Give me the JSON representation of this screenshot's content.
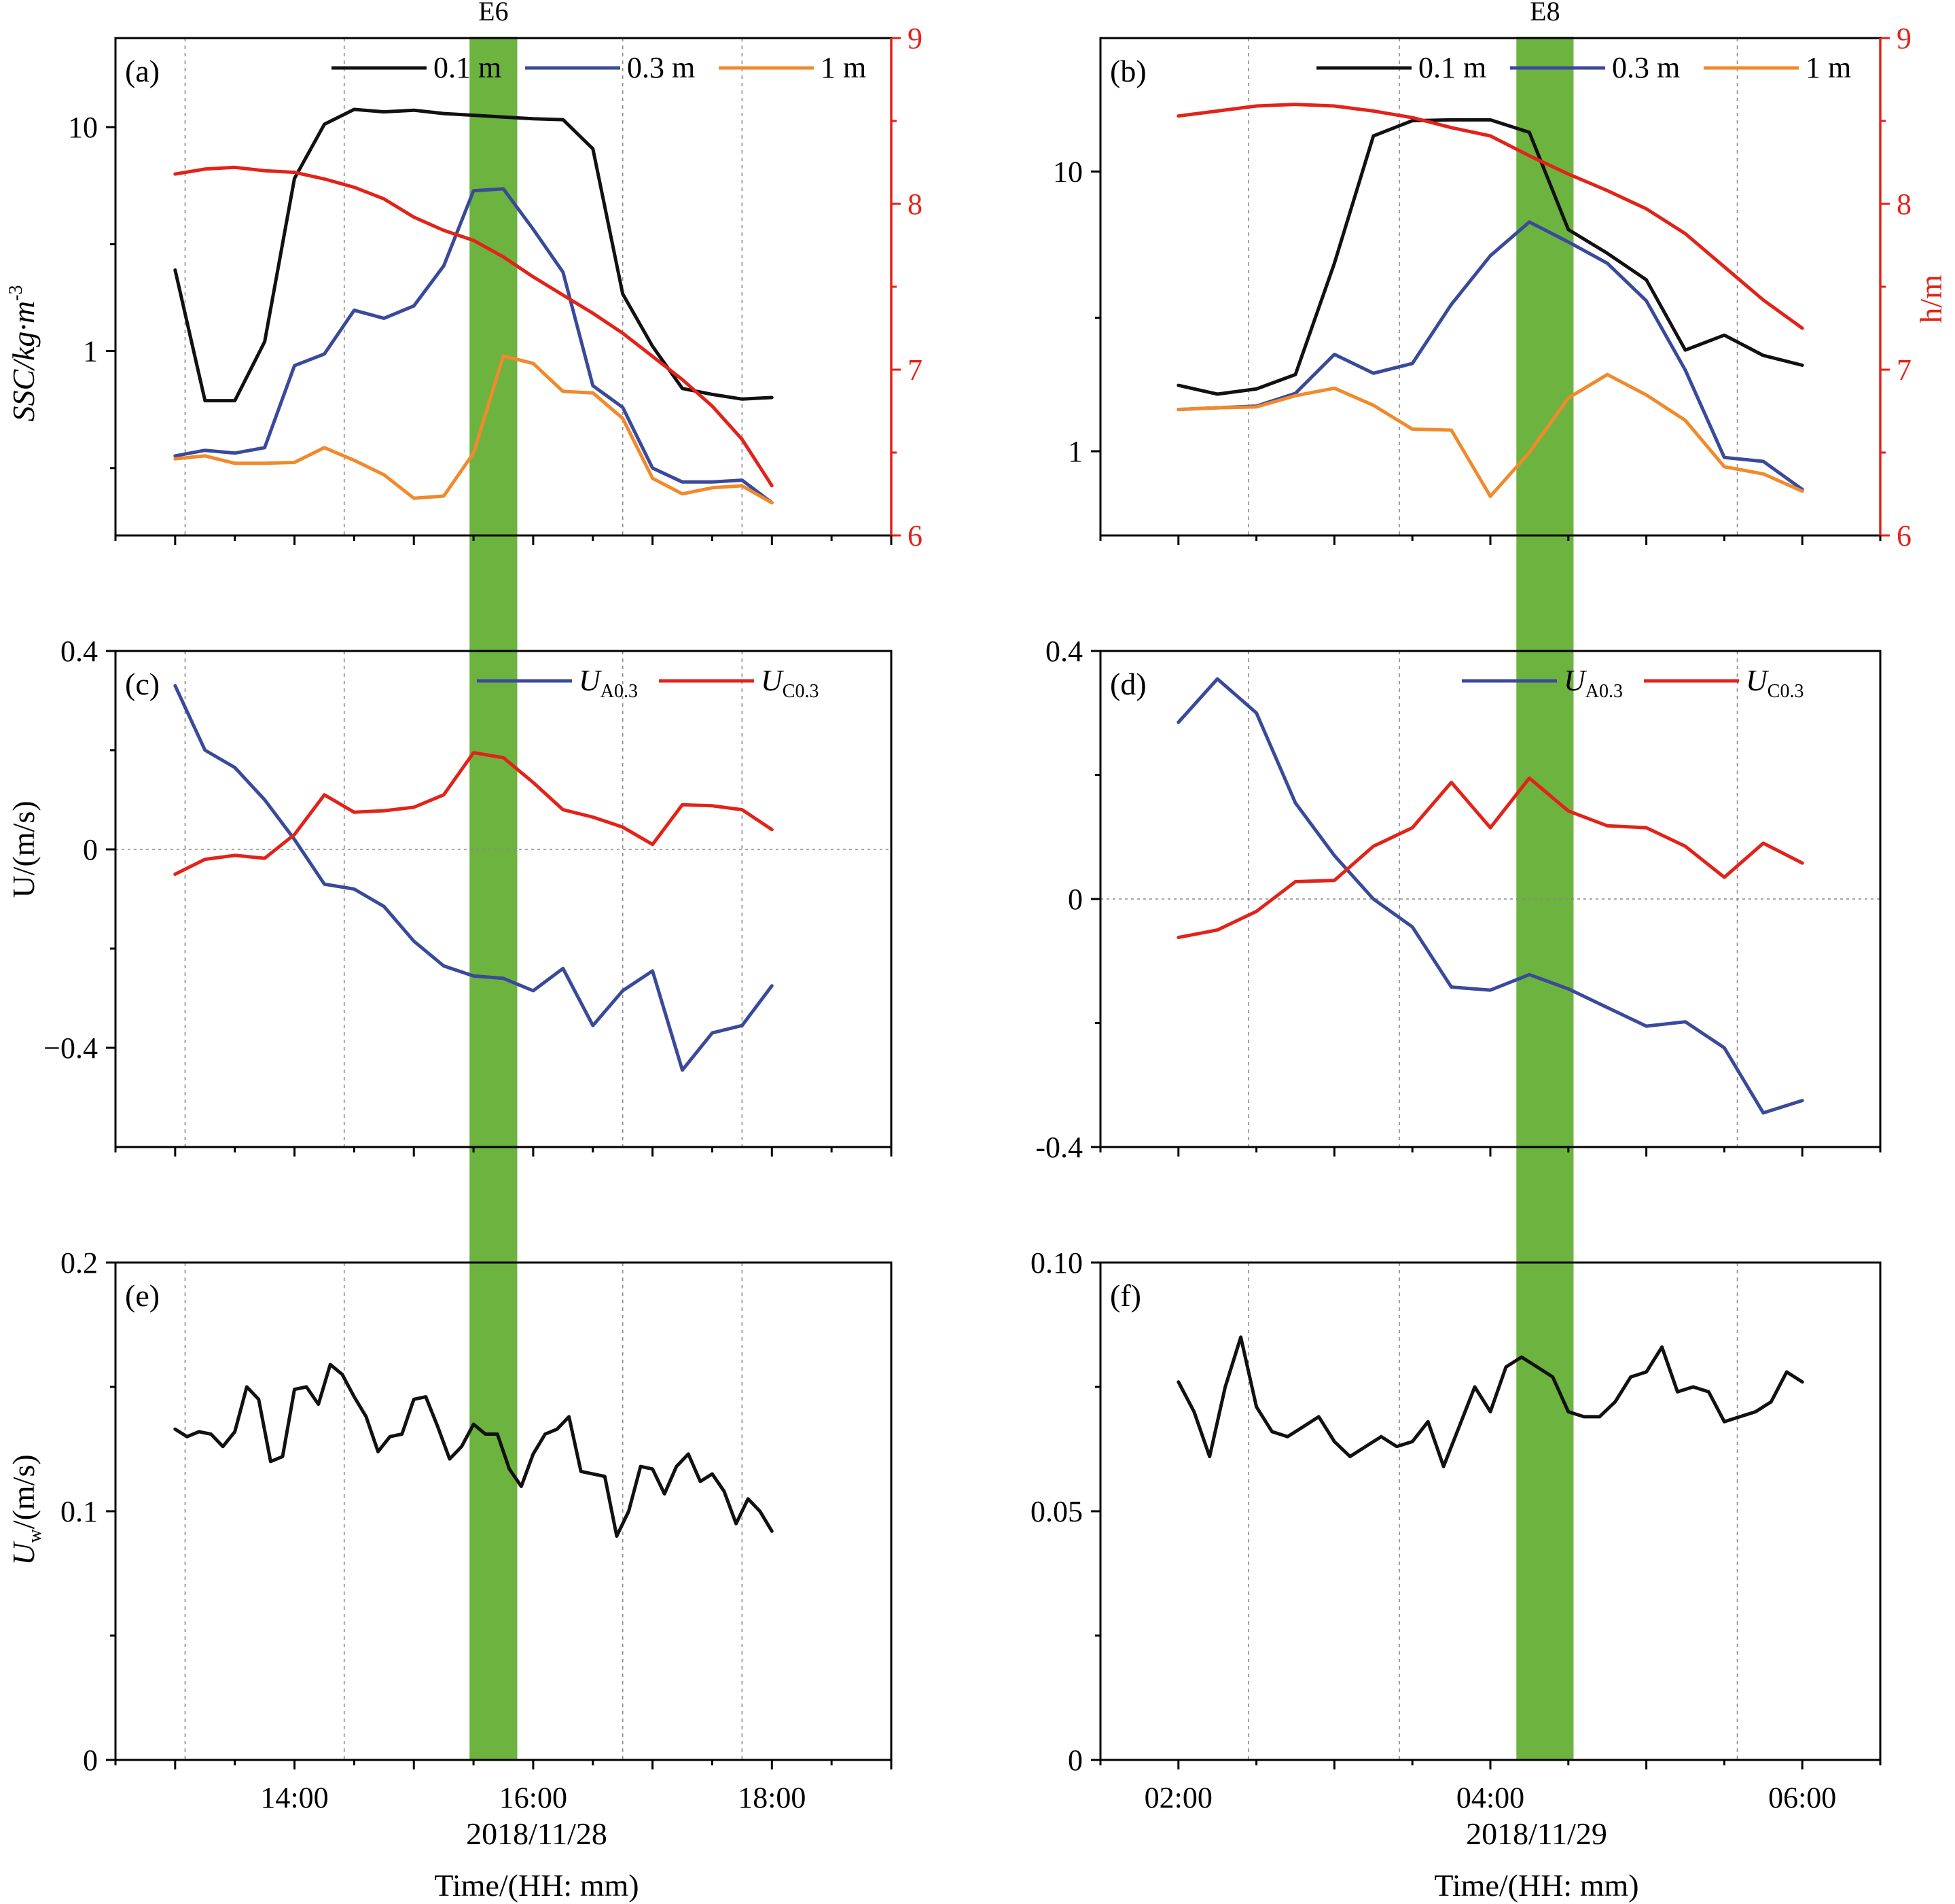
{
  "colors": {
    "black": "#111111",
    "blue": "#3a4a9a",
    "orange": "#f08a2c",
    "red": "#e2231a",
    "green": "#6db33f",
    "grid": "#8a8a8a"
  },
  "figure": {
    "left_column": {
      "station": "E6",
      "date": "2018/11/28",
      "xlabel": "Time/(HH: mm)",
      "x_ticks": [
        "14:00",
        "16:00",
        "18:00"
      ],
      "x_range": [
        "12:30",
        "19:00"
      ],
      "highlight": [
        "15:28",
        "15:52"
      ],
      "grid_times": [
        "13:05",
        "14:25",
        "16:45",
        "17:45"
      ]
    },
    "right_column": {
      "station": "E8",
      "date": "2018/11/29",
      "xlabel": "Time/(HH: mm)",
      "x_ticks": [
        "02:00",
        "04:00",
        "06:00"
      ],
      "x_range": [
        "01:30",
        "06:30"
      ],
      "highlight": [
        "04:10",
        "04:32"
      ],
      "grid_times": [
        "02:27",
        "03:25",
        "05:35"
      ]
    },
    "ylabels": {
      "ssc": "SSC/kg·m",
      "ssc_sup": "-3",
      "h": "h/m",
      "u": "U/(m/s)",
      "uw": "U",
      "uw_sub": "w",
      "uw_rest": "/(m/s)"
    }
  },
  "chart_data": [
    {
      "panel": "(a)",
      "type": "line",
      "scale": "log",
      "ylim": [
        0.15,
        25
      ],
      "y_ticks": [
        1,
        10
      ],
      "y_tick_labels": [
        "1",
        "10"
      ],
      "legend": [
        {
          "label": "0.1 m",
          "color": "#111111"
        },
        {
          "label": "0.3 m",
          "color": "#3a4a9a"
        },
        {
          "label": "1 m",
          "color": "#f08a2c"
        }
      ],
      "x": [
        "13:00",
        "13:15",
        "13:30",
        "13:45",
        "14:00",
        "14:15",
        "14:30",
        "14:45",
        "15:00",
        "15:15",
        "15:30",
        "15:45",
        "16:00",
        "16:15",
        "16:30",
        "16:45",
        "17:00",
        "17:15",
        "17:30",
        "17:45",
        "18:00"
      ],
      "series": [
        {
          "name": "0.1 m",
          "color": "#111111",
          "values": [
            2.3,
            0.6,
            0.6,
            1.1,
            5.9,
            10.3,
            12.0,
            11.7,
            11.9,
            11.5,
            11.3,
            11.1,
            10.9,
            10.8,
            8.0,
            1.8,
            1.05,
            0.68,
            0.64,
            0.61,
            0.62
          ]
        },
        {
          "name": "0.3 m",
          "color": "#3a4a9a",
          "values": [
            0.34,
            0.36,
            0.35,
            0.37,
            0.86,
            0.97,
            1.52,
            1.4,
            1.59,
            2.4,
            5.2,
            5.3,
            3.5,
            2.25,
            0.7,
            0.56,
            0.3,
            0.26,
            0.26,
            0.265,
            0.21
          ]
        },
        {
          "name": "1 m",
          "color": "#f08a2c",
          "values": [
            0.33,
            0.34,
            0.315,
            0.315,
            0.318,
            0.37,
            0.325,
            0.28,
            0.22,
            0.225,
            0.35,
            0.95,
            0.88,
            0.66,
            0.65,
            0.5,
            0.27,
            0.23,
            0.245,
            0.25,
            0.21
          ]
        }
      ],
      "secondary": {
        "label": "h/m",
        "color": "#e2231a",
        "ylim": [
          6,
          9
        ],
        "y_ticks": [
          6,
          7,
          8,
          9
        ],
        "values": [
          8.18,
          8.21,
          8.22,
          8.2,
          8.19,
          8.15,
          8.1,
          8.03,
          7.92,
          7.84,
          7.78,
          7.68,
          7.56,
          7.45,
          7.34,
          7.22,
          7.08,
          6.94,
          6.78,
          6.58,
          6.3
        ]
      }
    },
    {
      "panel": "(b)",
      "type": "line",
      "scale": "log",
      "ylim": [
        0.5,
        30
      ],
      "y_ticks": [
        1,
        10
      ],
      "y_tick_labels": [
        "1",
        "10"
      ],
      "legend": [
        {
          "label": "0.1 m",
          "color": "#111111"
        },
        {
          "label": "0.3 m",
          "color": "#3a4a9a"
        },
        {
          "label": "1 m",
          "color": "#f08a2c"
        }
      ],
      "x": [
        "02:00",
        "02:15",
        "02:30",
        "02:45",
        "03:00",
        "03:15",
        "03:30",
        "03:45",
        "04:00",
        "04:15",
        "04:30",
        "04:45",
        "05:00",
        "05:15",
        "05:30",
        "05:45",
        "06:00"
      ],
      "series": [
        {
          "name": "0.1 m",
          "color": "#111111",
          "values": [
            1.72,
            1.6,
            1.67,
            1.88,
            4.7,
            13.4,
            15.2,
            15.3,
            15.3,
            13.8,
            6.2,
            5.1,
            4.1,
            2.3,
            2.6,
            2.2,
            2.03
          ]
        },
        {
          "name": "0.3 m",
          "color": "#3a4a9a",
          "values": [
            1.41,
            1.43,
            1.45,
            1.61,
            2.22,
            1.9,
            2.06,
            3.35,
            5.0,
            6.6,
            5.6,
            4.7,
            3.45,
            1.95,
            0.95,
            0.92,
            0.73
          ]
        },
        {
          "name": "1 m",
          "color": "#f08a2c",
          "values": [
            1.41,
            1.43,
            1.44,
            1.58,
            1.68,
            1.46,
            1.2,
            1.19,
            0.69,
            0.99,
            1.55,
            1.88,
            1.59,
            1.29,
            0.88,
            0.83,
            0.72
          ]
        }
      ],
      "secondary": {
        "label": "h/m",
        "color": "#e2231a",
        "ylim": [
          6,
          9
        ],
        "y_ticks": [
          6,
          7,
          8,
          9
        ],
        "values": [
          8.53,
          8.56,
          8.59,
          8.6,
          8.59,
          8.56,
          8.52,
          8.46,
          8.41,
          8.29,
          8.18,
          8.08,
          7.97,
          7.82,
          7.62,
          7.42,
          7.25
        ]
      }
    },
    {
      "panel": "(c)",
      "type": "line",
      "ylim": [
        -0.6,
        0.4
      ],
      "y_ticks": [
        -0.4,
        0,
        0.4
      ],
      "y_tick_labels": [
        "−0.4",
        "0",
        "0.4"
      ],
      "legend": [
        {
          "label": "U",
          "sub": "A0.3",
          "color": "#3a4a9a"
        },
        {
          "label": "U",
          "sub": "C0.3",
          "color": "#e2231a"
        }
      ],
      "x": [
        "13:00",
        "13:15",
        "13:30",
        "13:45",
        "14:00",
        "14:15",
        "14:30",
        "14:45",
        "15:00",
        "15:15",
        "15:30",
        "15:45",
        "16:00",
        "16:15",
        "16:30",
        "16:45",
        "17:00",
        "17:15",
        "17:30",
        "17:45",
        "18:00"
      ],
      "series": [
        {
          "name": "UA0.3",
          "color": "#3a4a9a",
          "values": [
            0.33,
            0.2,
            0.165,
            0.1,
            0.02,
            -0.07,
            -0.08,
            -0.115,
            -0.185,
            -0.235,
            -0.255,
            -0.26,
            -0.285,
            -0.24,
            -0.355,
            -0.285,
            -0.245,
            -0.445,
            -0.37,
            -0.355,
            -0.275
          ]
        },
        {
          "name": "UC0.3",
          "color": "#e2231a",
          "values": [
            -0.05,
            -0.02,
            -0.012,
            -0.018,
            0.03,
            0.11,
            0.075,
            0.078,
            0.085,
            0.11,
            0.195,
            0.185,
            0.135,
            0.08,
            0.065,
            0.045,
            0.01,
            0.09,
            0.088,
            0.08,
            0.04
          ]
        }
      ]
    },
    {
      "panel": "(d)",
      "type": "line",
      "ylim": [
        -0.4,
        0.4
      ],
      "y_ticks": [
        -0.4,
        0,
        0.4
      ],
      "y_tick_labels": [
        "-0.4",
        "0",
        "0.4"
      ],
      "legend": [
        {
          "label": "U",
          "sub": "A0.3",
          "color": "#3a4a9a"
        },
        {
          "label": "U",
          "sub": "C0.3",
          "color": "#e2231a"
        }
      ],
      "x": [
        "02:00",
        "02:15",
        "02:30",
        "02:45",
        "03:00",
        "03:15",
        "03:30",
        "03:45",
        "04:00",
        "04:15",
        "04:30",
        "04:45",
        "05:00",
        "05:15",
        "05:30",
        "05:45",
        "06:00"
      ],
      "series": [
        {
          "name": "UA0.3",
          "color": "#3a4a9a",
          "values": [
            0.285,
            0.355,
            0.3,
            0.155,
            0.07,
            0.0,
            -0.045,
            -0.142,
            -0.147,
            -0.122,
            -0.145,
            -0.175,
            -0.205,
            -0.198,
            -0.24,
            -0.345,
            -0.325
          ]
        },
        {
          "name": "UC0.3",
          "color": "#e2231a",
          "values": [
            -0.062,
            -0.05,
            -0.02,
            0.028,
            0.03,
            0.085,
            0.115,
            0.188,
            0.115,
            0.195,
            0.142,
            0.118,
            0.115,
            0.085,
            0.035,
            0.09,
            0.058
          ]
        }
      ]
    },
    {
      "panel": "(e)",
      "type": "line",
      "ylim": [
        0,
        0.2
      ],
      "y_ticks": [
        0,
        0.1,
        0.2
      ],
      "y_tick_labels": [
        "0",
        "0.1",
        "0.2"
      ],
      "x_start": "13:00",
      "x_end": "18:00",
      "series": [
        {
          "name": "Uw",
          "color": "#111111",
          "values": [
            0.133,
            0.13,
            0.132,
            0.131,
            0.126,
            0.132,
            0.15,
            0.145,
            0.12,
            0.122,
            0.149,
            0.15,
            0.143,
            0.159,
            0.155,
            0.146,
            0.138,
            0.124,
            0.13,
            0.131,
            0.145,
            0.146,
            0.134,
            0.121,
            0.126,
            0.135,
            0.131,
            0.131,
            0.117,
            0.11,
            0.123,
            0.131,
            0.133,
            0.138,
            0.116,
            0.115,
            0.114,
            0.09,
            0.1,
            0.118,
            0.117,
            0.107,
            0.118,
            0.123,
            0.112,
            0.115,
            0.108,
            0.095,
            0.105,
            0.1,
            0.092
          ]
        }
      ]
    },
    {
      "panel": "(f)",
      "type": "line",
      "ylim": [
        0,
        0.1
      ],
      "y_ticks": [
        0,
        0.05,
        0.1
      ],
      "y_tick_labels": [
        "0",
        "0.05",
        "0.10"
      ],
      "x_start": "02:00",
      "x_end": "06:00",
      "series": [
        {
          "name": "Uw",
          "color": "#111111",
          "values": [
            0.076,
            0.07,
            0.061,
            0.075,
            0.085,
            0.071,
            0.066,
            0.065,
            0.067,
            0.069,
            0.064,
            0.061,
            0.063,
            0.065,
            0.063,
            0.064,
            0.068,
            0.059,
            0.067,
            0.075,
            0.07,
            0.079,
            0.081,
            0.079,
            0.077,
            0.07,
            0.069,
            0.069,
            0.072,
            0.077,
            0.078,
            0.083,
            0.074,
            0.075,
            0.074,
            0.068,
            0.069,
            0.07,
            0.072,
            0.078,
            0.076
          ]
        }
      ]
    }
  ]
}
